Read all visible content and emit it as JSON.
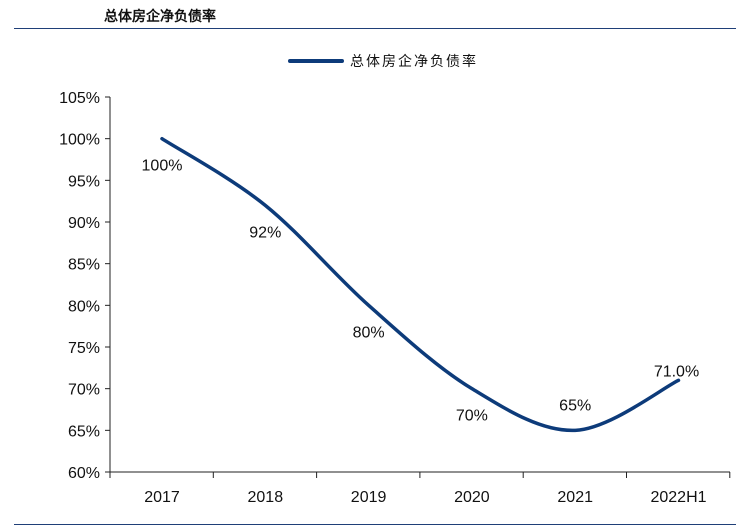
{
  "header": {
    "title": "总体房企净负债率"
  },
  "chart_data": {
    "type": "line",
    "title": "总体房企净负债率",
    "categories": [
      "2017",
      "2018",
      "2019",
      "2020",
      "2021",
      "2022H1"
    ],
    "series": [
      {
        "name": "总体房企净负债率",
        "values": [
          100,
          92,
          80,
          70,
          65,
          71
        ],
        "labels": [
          "100%",
          "92%",
          "80%",
          "70%",
          "65%",
          "71.0%"
        ],
        "color": "#0d3b7a"
      }
    ],
    "ylim": [
      60,
      105
    ],
    "yticks": [
      60,
      65,
      70,
      75,
      80,
      85,
      90,
      95,
      100,
      105
    ],
    "ytick_labels": [
      "60%",
      "65%",
      "70%",
      "75%",
      "80%",
      "85%",
      "90%",
      "95%",
      "100%",
      "105%"
    ],
    "grid": false,
    "legend_position": "top-center",
    "smooth": true
  }
}
